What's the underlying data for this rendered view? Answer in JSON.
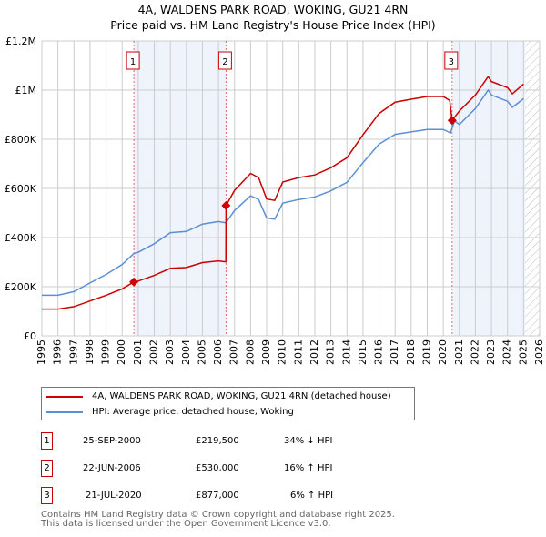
{
  "chart_data": {
    "type": "line",
    "title": "4A, WALDENS PARK ROAD, WOKING, GU21 4RN",
    "subtitle": "Price paid vs. HM Land Registry's House Price Index (HPI)",
    "xlim": [
      1995,
      2026
    ],
    "ylim": [
      0,
      1200000
    ],
    "x_ticks": [
      "1995",
      "1996",
      "1997",
      "1998",
      "1999",
      "2000",
      "2001",
      "2002",
      "2003",
      "2004",
      "2005",
      "2006",
      "2007",
      "2008",
      "2009",
      "2010",
      "2011",
      "2012",
      "2013",
      "2014",
      "2015",
      "2016",
      "2017",
      "2018",
      "2019",
      "2020",
      "2021",
      "2022",
      "2023",
      "2024",
      "2025",
      "2026"
    ],
    "y_ticks": [
      {
        "v": 0,
        "label": "£0"
      },
      {
        "v": 200000,
        "label": "£200K"
      },
      {
        "v": 400000,
        "label": "£400K"
      },
      {
        "v": 600000,
        "label": "£600K"
      },
      {
        "v": 800000,
        "label": "£800K"
      },
      {
        "v": 1000000,
        "label": "£1M"
      },
      {
        "v": 1200000,
        "label": "£1.2M"
      }
    ],
    "grid": true,
    "series": [
      {
        "name": "4A, WALDENS PARK ROAD, WOKING, GU21 4RN (detached house)",
        "color": "#cc0000",
        "x": [
          1995,
          1996,
          1997,
          1998,
          1999,
          2000,
          2000.73,
          2001,
          2002,
          2003,
          2004,
          2005,
          2006,
          2006.46,
          2006.47,
          2007,
          2008,
          2008.5,
          2009,
          2009.5,
          2010,
          2011,
          2012,
          2013,
          2014,
          2015,
          2016,
          2017,
          2018,
          2019,
          2020,
          2020.4,
          2020.55,
          2021,
          2022,
          2022.8,
          2023,
          2024,
          2024.3,
          2025
        ],
        "y": [
          109000,
          109000,
          119000,
          142000,
          165000,
          191000,
          219500,
          223000,
          246000,
          275000,
          278000,
          298000,
          305000,
          301000,
          530000,
          592000,
          661000,
          644000,
          557000,
          551000,
          626000,
          644000,
          655000,
          684000,
          725000,
          818000,
          905000,
          951000,
          963000,
          974000,
          974000,
          958000,
          877000,
          915000,
          980000,
          1055000,
          1035000,
          1010000,
          985000,
          1025000
        ]
      },
      {
        "name": "HPI: Average price, detached house, Woking",
        "color": "#5b8fd4",
        "x": [
          1995,
          1996,
          1997,
          1998,
          1999,
          2000,
          2000.73,
          2001,
          2002,
          2003,
          2004,
          2005,
          2006,
          2006.46,
          2007,
          2008,
          2008.5,
          2009,
          2009.5,
          2010,
          2011,
          2012,
          2013,
          2014,
          2015,
          2016,
          2017,
          2018,
          2019,
          2020,
          2020.45,
          2020.7,
          2021,
          2022,
          2022.8,
          2023,
          2024,
          2024.3,
          2025
        ],
        "y": [
          165000,
          165000,
          180000,
          215000,
          250000,
          290000,
          335000,
          340000,
          375000,
          420000,
          425000,
          455000,
          465000,
          460000,
          510000,
          570000,
          555000,
          480000,
          475000,
          540000,
          555000,
          565000,
          590000,
          625000,
          705000,
          780000,
          820000,
          830000,
          840000,
          840000,
          826000,
          875000,
          860000,
          925000,
          1000000,
          980000,
          955000,
          930000,
          965000
        ]
      }
    ],
    "sales": [
      {
        "id": "1",
        "x": 2000.73,
        "y": 219500
      },
      {
        "id": "2",
        "x": 2006.47,
        "y": 530000
      },
      {
        "id": "3",
        "x": 2020.55,
        "y": 877000
      }
    ],
    "forecast_hatch_from": 2025.1
  },
  "legend": {
    "property": "4A, WALDENS PARK ROAD, WOKING, GU21 4RN (detached house)",
    "hpi": "HPI: Average price, detached house, Woking"
  },
  "transactions": [
    {
      "id": "1",
      "date": "25-SEP-2000",
      "price": "£219,500",
      "hpi": "34% ↓ HPI"
    },
    {
      "id": "2",
      "date": "22-JUN-2006",
      "price": "£530,000",
      "hpi": "16% ↑ HPI"
    },
    {
      "id": "3",
      "date": "21-JUL-2020",
      "price": "£877,000",
      "hpi": "6% ↑ HPI"
    }
  ],
  "footer": [
    "Contains HM Land Registry data © Crown copyright and database right 2025.",
    "This data is licensed under the Open Government Licence v3.0."
  ]
}
